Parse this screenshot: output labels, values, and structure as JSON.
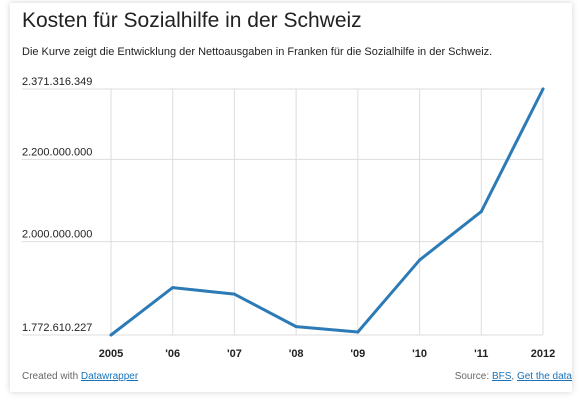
{
  "header": {
    "title": "Kosten für Sozialhilfe in der Schweiz",
    "subtitle": "Die Kurve zeigt die Entwicklung der Nettoausgaben in Franken für die Sozialhilfe in der Schweiz."
  },
  "footer": {
    "created_prefix": "Created with",
    "created_link": "Datawrapper",
    "source_prefix": "Source:",
    "source_link": "BFS",
    "get_data_link": "Get the data"
  },
  "colors": {
    "line": "#2c7bb6",
    "grid": "#dddddd",
    "text": "#222222"
  },
  "chart_data": {
    "type": "line",
    "title": "Kosten für Sozialhilfe in der Schweiz",
    "subtitle": "Die Kurve zeigt die Entwicklung der Nettoausgaben in Franken für die Sozialhilfe in der Schweiz.",
    "categories": [
      "2005",
      "'06",
      "'07",
      "'08",
      "'09",
      "'10",
      "'11",
      "2012"
    ],
    "series": [
      {
        "values": [
          1772610227,
          1888000000,
          1872000000,
          1793000000,
          1780000000,
          1955000000,
          2073000000,
          2371316349
        ]
      }
    ],
    "y_ticks": [
      {
        "value": 1772610227,
        "label": "1.772.610.227"
      },
      {
        "value": 2000000000,
        "label": "2.000.000.000"
      },
      {
        "value": 2200000000,
        "label": "2.200.000.000"
      },
      {
        "value": 2371316349,
        "label": "2.371.316.349"
      }
    ],
    "ylim": [
      1772610227,
      2371316349
    ],
    "grid": true,
    "xlabel": "",
    "ylabel": ""
  }
}
